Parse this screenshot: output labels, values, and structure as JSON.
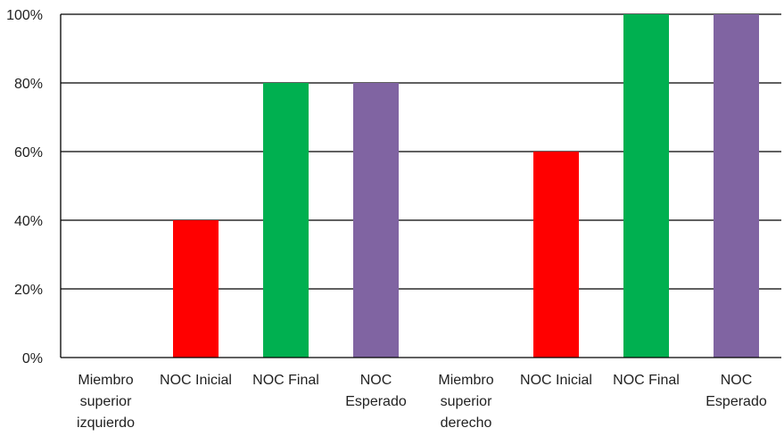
{
  "chart_data": {
    "type": "bar",
    "title": "",
    "xlabel": "",
    "ylabel": "",
    "ylim": [
      0,
      100
    ],
    "y_ticks": [
      0,
      20,
      40,
      60,
      80,
      100
    ],
    "y_tick_labels": [
      "0%",
      "20%",
      "40%",
      "60%",
      "80%",
      "100%"
    ],
    "grid": true,
    "legend": "none",
    "categories": [
      [
        "Miembro",
        "superior",
        "izquierdo"
      ],
      [
        "NOC Inicial"
      ],
      [
        "NOC Final"
      ],
      [
        "NOC",
        "Esperado"
      ],
      [
        "Miembro",
        "superior",
        "derecho"
      ],
      [
        "NOC Inicial"
      ],
      [
        "NOC Final"
      ],
      [
        "NOC",
        "Esperado"
      ]
    ],
    "values": [
      0,
      40,
      80,
      80,
      0,
      60,
      100,
      100
    ],
    "colors": [
      "#ffffff",
      "#ff0000",
      "#00b050",
      "#8064a2",
      "#ffffff",
      "#ff0000",
      "#00b050",
      "#8064a2"
    ]
  }
}
